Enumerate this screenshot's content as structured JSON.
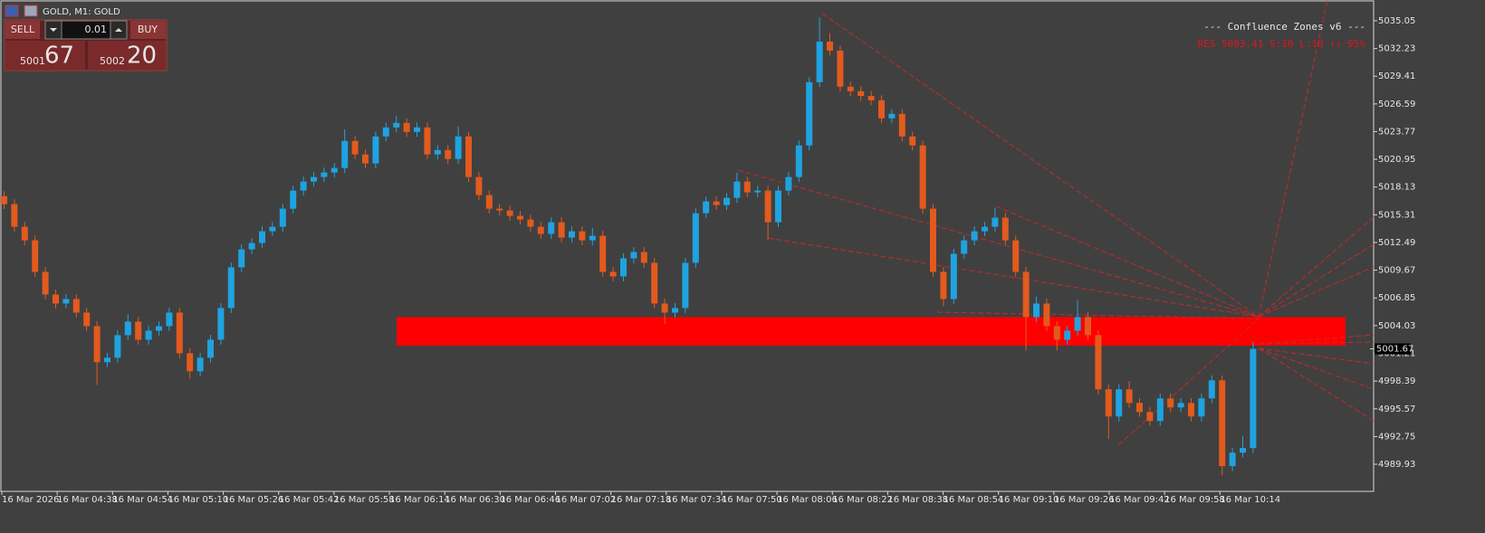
{
  "window": {
    "title": "GOLD, M1:  GOLD"
  },
  "trade_panel": {
    "sell": "SELL",
    "buy": "BUY",
    "volume": "0.01",
    "bid_main": "5001",
    "bid_pips": "67",
    "ask_main": "5002",
    "ask_pips": "20"
  },
  "chart_data": {
    "type": "candlestick",
    "up_color": "#1fa3e0",
    "down_color": "#e35a1e",
    "ylim": [
      4987.17,
      5037.07
    ],
    "yticks": [
      5035.05,
      5032.23,
      5029.41,
      5026.59,
      5023.77,
      5020.95,
      5018.13,
      5015.31,
      5012.49,
      5009.67,
      5006.85,
      5004.03,
      5001.21,
      4998.39,
      4995.57,
      4992.75,
      4989.93
    ],
    "xtick_labels": [
      "16 Mar 2026",
      "16 Mar 04:38",
      "16 Mar 04:54",
      "16 Mar 05:10",
      "16 Mar 05:26",
      "16 Mar 05:42",
      "16 Mar 05:58",
      "16 Mar 06:14",
      "16 Mar 06:30",
      "16 Mar 06:46",
      "16 Mar 07:02",
      "16 Mar 07:18",
      "16 Mar 07:34",
      "16 Mar 07:50",
      "16 Mar 08:06",
      "16 Mar 08:22",
      "16 Mar 08:38",
      "16 Mar 08:54",
      "16 Mar 09:10",
      "16 Mar 09:26",
      "16 Mar 09:42",
      "16 Mar 09:58",
      "16 Mar 10:14"
    ],
    "open": [
      5017.2,
      5016.39,
      5014.09,
      5012.71,
      5009.5,
      5007.2,
      5006.28,
      5006.74,
      5005.36,
      5003.98,
      5000.31,
      5000.77,
      5003.06,
      5004.44,
      5002.6,
      5003.52,
      5003.98,
      5005.36,
      5001.22,
      4999.39,
      5000.77,
      5002.6,
      5005.82,
      5009.96,
      5011.79,
      5012.44,
      5013.63,
      5014.09,
      5015.93,
      5017.77,
      5018.69,
      5019.15,
      5019.61,
      5020.07,
      5022.82,
      5021.45,
      5020.53,
      5023.28,
      5024.2,
      5024.66,
      5023.74,
      5024.2,
      5021.45,
      5021.9,
      5020.99,
      5023.28,
      5019.15,
      5017.31,
      5015.93,
      5015.75,
      5015.2,
      5014.83,
      5014.09,
      5013.36,
      5014.55,
      5012.99,
      5013.63,
      5012.71,
      5013.17,
      5009.5,
      5009.04,
      5010.88,
      5011.52,
      5010.42,
      5006.28,
      5005.36,
      5005.82,
      5010.42,
      5015.47,
      5016.67,
      5016.3,
      5017.03,
      5018.69,
      5017.59,
      5017.77,
      5014.55,
      5017.77,
      5019.15,
      5022.36,
      5028.8,
      5032.93,
      5032.01,
      5028.34,
      5027.88,
      5027.4,
      5026.96,
      5025.12,
      5025.58,
      5023.28,
      5022.36,
      5015.93,
      5009.5,
      5006.74,
      5011.34,
      5012.71,
      5013.63,
      5014.09,
      5015.01,
      5012.71,
      5009.5,
      5004.9,
      5006.28,
      5003.98,
      5002.6,
      5003.52,
      5004.9,
      5003.06,
      4997.55,
      4994.79,
      4997.55,
      4996.17,
      4995.25,
      4994.33,
      4996.63,
      4995.71,
      4996.17,
      4994.79,
      4996.63,
      4998.47,
      4989.74,
      4991.11,
      4991.58
    ],
    "high": [
      5017.7,
      5016.89,
      5014.59,
      5013.21,
      5010.0,
      5007.7,
      5007.24,
      5007.24,
      5005.86,
      5004.48,
      5001.27,
      5003.56,
      5005.2,
      5004.94,
      5004.02,
      5004.48,
      5005.86,
      5005.86,
      5001.72,
      5001.27,
      5003.1,
      5006.32,
      5010.46,
      5012.29,
      5012.94,
      5014.13,
      5014.59,
      5016.43,
      5018.27,
      5019.19,
      5019.65,
      5020.11,
      5020.57,
      5024.0,
      5023.32,
      5021.95,
      5023.78,
      5024.7,
      5025.4,
      5025.16,
      5024.7,
      5024.7,
      5022.4,
      5022.4,
      5024.3,
      5023.78,
      5019.65,
      5017.81,
      5016.43,
      5016.25,
      5015.7,
      5015.33,
      5014.59,
      5015.05,
      5015.05,
      5014.13,
      5014.13,
      5014.0,
      5013.67,
      5010.0,
      5011.38,
      5012.02,
      5012.02,
      5010.92,
      5006.78,
      5006.32,
      5010.92,
      5015.97,
      5017.17,
      5017.17,
      5017.53,
      5019.6,
      5019.19,
      5018.27,
      5018.27,
      5018.27,
      5019.65,
      5022.86,
      5029.3,
      5035.4,
      5033.8,
      5032.51,
      5028.84,
      5028.38,
      5027.9,
      5027.46,
      5026.08,
      5026.08,
      5023.78,
      5022.86,
      5016.43,
      5010.0,
      5011.84,
      5013.21,
      5014.13,
      5014.59,
      5016.0,
      5015.51,
      5013.21,
      5010.0,
      5007.0,
      5006.78,
      5004.48,
      5004.02,
      5006.6,
      5005.4,
      5003.56,
      4998.05,
      4998.05,
      4998.4,
      4996.67,
      4995.75,
      4997.13,
      4997.13,
      4996.67,
      4996.67,
      4997.13,
      4998.97,
      4998.97,
      4991.61,
      4992.8,
      5002.4
    ],
    "low": [
      5015.89,
      5013.59,
      5012.21,
      5009.0,
      5006.7,
      5005.78,
      5005.78,
      5004.86,
      5003.48,
      4998.0,
      4999.81,
      5000.27,
      5002.56,
      5002.1,
      5002.1,
      5003.02,
      5003.48,
      5000.72,
      4998.6,
      4998.89,
      5000.27,
      5002.1,
      5005.32,
      5009.46,
      5011.29,
      5011.94,
      5013.13,
      5013.59,
      5015.43,
      5017.27,
      5018.19,
      5018.65,
      5019.11,
      5019.57,
      5020.95,
      5020.03,
      5020.03,
      5022.78,
      5023.7,
      5023.24,
      5023.24,
      5020.95,
      5020.95,
      5020.49,
      5020.49,
      5018.65,
      5016.81,
      5015.43,
      5015.25,
      5014.7,
      5014.33,
      5013.59,
      5012.86,
      5012.86,
      5012.49,
      5012.49,
      5012.21,
      5012.21,
      5009.0,
      5008.54,
      5008.54,
      5010.38,
      5009.92,
      5005.78,
      5004.2,
      5004.86,
      5005.32,
      5009.92,
      5014.97,
      5015.8,
      5015.8,
      5016.53,
      5017.09,
      5017.09,
      5012.8,
      5014.05,
      5017.27,
      5018.65,
      5021.86,
      5028.3,
      5031.51,
      5027.84,
      5027.38,
      5026.9,
      5026.46,
      5024.62,
      5024.62,
      5022.78,
      5021.86,
      5015.43,
      5009.0,
      5006.0,
      5006.24,
      5010.84,
      5012.21,
      5013.13,
      5013.59,
      5012.21,
      5009.0,
      5001.5,
      5004.4,
      5003.48,
      5001.5,
      5002.1,
      5003.02,
      5002.56,
      4997.05,
      4992.5,
      4994.29,
      4995.67,
      4994.75,
      4993.83,
      4993.83,
      4995.21,
      4995.21,
      4994.29,
      4994.29,
      4996.13,
      4988.8,
      4989.24,
      4990.61,
      4991.08
    ],
    "close": [
      5016.39,
      5014.09,
      5012.71,
      5009.5,
      5007.2,
      5006.28,
      5006.74,
      5005.36,
      5003.98,
      5000.31,
      5000.77,
      5003.06,
      5004.44,
      5002.6,
      5003.52,
      5003.98,
      5005.36,
      5001.22,
      4999.39,
      5000.77,
      5002.6,
      5005.82,
      5009.96,
      5011.79,
      5012.44,
      5013.63,
      5014.09,
      5015.93,
      5017.77,
      5018.69,
      5019.15,
      5019.61,
      5020.07,
      5022.82,
      5021.45,
      5020.53,
      5023.28,
      5024.2,
      5024.66,
      5023.74,
      5024.2,
      5021.45,
      5021.9,
      5020.99,
      5023.28,
      5019.15,
      5017.31,
      5015.93,
      5015.75,
      5015.2,
      5014.83,
      5014.09,
      5013.36,
      5014.55,
      5012.99,
      5013.63,
      5012.71,
      5013.17,
      5009.5,
      5009.04,
      5010.88,
      5011.52,
      5010.42,
      5006.28,
      5005.36,
      5005.82,
      5010.42,
      5015.47,
      5016.67,
      5016.3,
      5017.03,
      5018.69,
      5017.59,
      5017.77,
      5014.55,
      5017.77,
      5019.15,
      5022.36,
      5028.8,
      5032.93,
      5032.01,
      5028.34,
      5027.88,
      5027.4,
      5026.96,
      5025.12,
      5025.58,
      5023.28,
      5022.36,
      5015.93,
      5009.5,
      5006.74,
      5011.34,
      5012.71,
      5013.63,
      5014.09,
      5015.01,
      5012.71,
      5009.5,
      5004.9,
      5006.28,
      5003.98,
      5002.6,
      5003.52,
      5004.9,
      5003.06,
      4997.55,
      4994.79,
      4997.55,
      4996.17,
      4995.25,
      4994.33,
      4996.63,
      4995.71,
      4996.17,
      4994.79,
      4996.63,
      4998.47,
      4989.74,
      4991.11,
      4991.58,
      5001.67
    ],
    "last_price": 5001.67,
    "zone": {
      "low": 5002.0,
      "high": 5004.9,
      "color": "#ff0000"
    },
    "indicator": {
      "title": "--- Confluence Zones v6 ---",
      "status": "RES 5003.41  S:10 L:10 ↑↓ 95%",
      "status_color": "#e0141e"
    }
  }
}
